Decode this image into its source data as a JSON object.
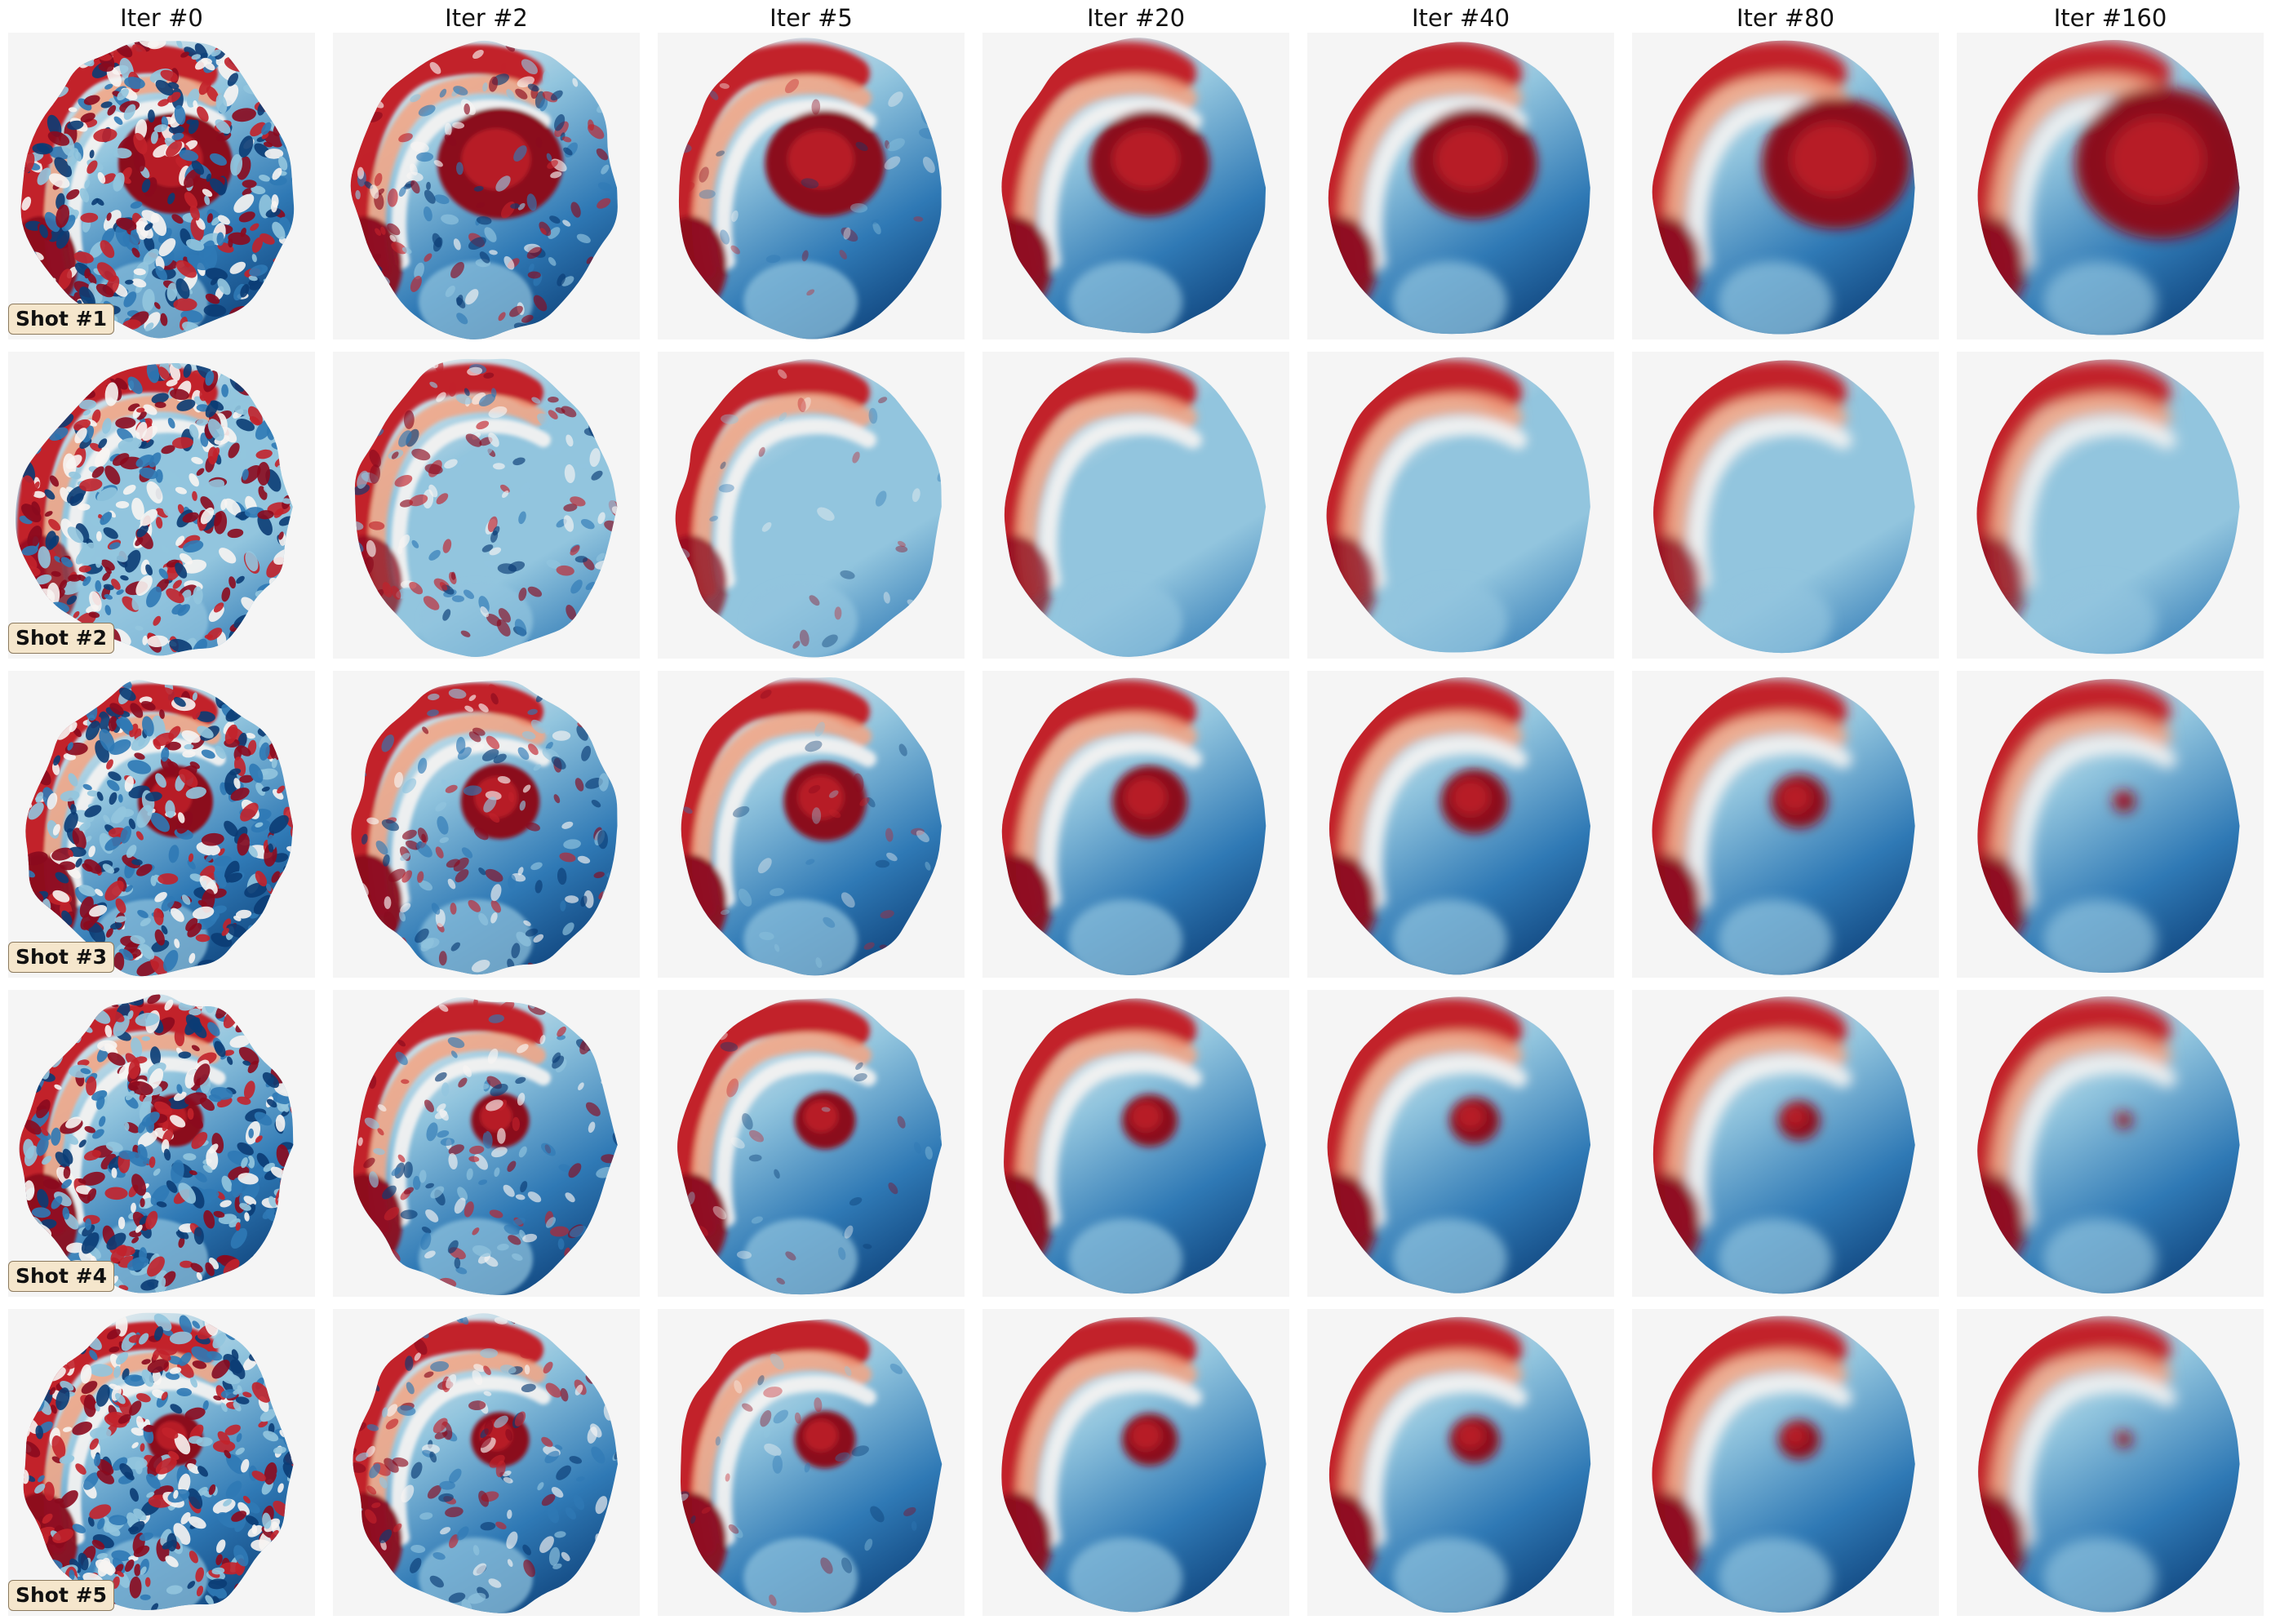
{
  "columns": [
    {
      "title": "Iter #0",
      "stage": 0
    },
    {
      "title": "Iter #2",
      "stage": 1
    },
    {
      "title": "Iter #5",
      "stage": 2
    },
    {
      "title": "Iter #20",
      "stage": 3
    },
    {
      "title": "Iter #40",
      "stage": 4
    },
    {
      "title": "Iter #80",
      "stage": 5
    },
    {
      "title": "Iter #160",
      "stage": 6
    }
  ],
  "rows": [
    {
      "label": "Shot #1",
      "core": "large"
    },
    {
      "label": "Shot #2",
      "core": "none"
    },
    {
      "label": "Shot #3",
      "core": "medium"
    },
    {
      "label": "Shot #4",
      "core": "small"
    },
    {
      "label": "Shot #5",
      "core": "small"
    }
  ],
  "colormap": {
    "name": "RdBu",
    "red_dark": "#8b0a1e",
    "red": "#c2222b",
    "red_light": "#f4a582",
    "white": "#f7f4f2",
    "blue_light": "#92c5de",
    "blue": "#2f79b5",
    "blue_dark": "#0b3c74",
    "panel_background": "#f5f5f5"
  },
  "label_box": {
    "background": "#f5e6cc",
    "border": "#8c7a5e"
  }
}
